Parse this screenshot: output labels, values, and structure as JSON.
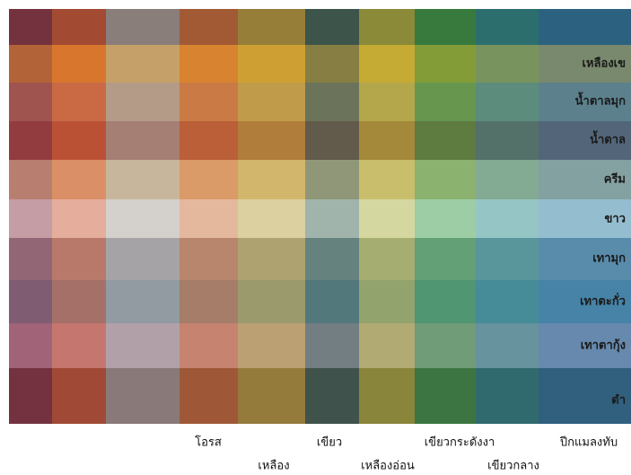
{
  "row_labels": [
    "เหลืองเข",
    "น้ำตาลมุก",
    "น้ำตาล",
    "ครีม",
    "ขาว",
    "เทามุก",
    "เทาตะกั่ว",
    "เทาตากุ้ง",
    "ดำ"
  ],
  "column_labels": [
    "โอรส",
    "เหลือง",
    "เขียว",
    "เหลืองอ่อน",
    "เขียวกระดังงา",
    "เขียวกลาง",
    "ปีกแมลงทับ"
  ]
}
